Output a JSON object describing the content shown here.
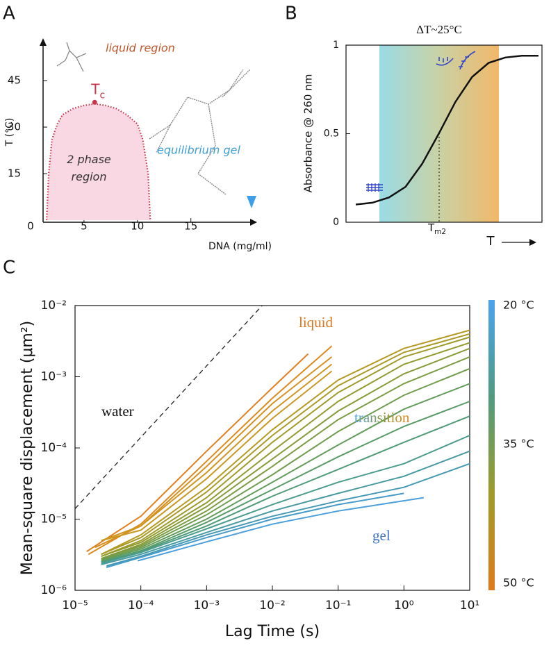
{
  "chart_data": [
    {
      "type": "line",
      "panel": "A",
      "xlabel": "DNA (mg/ml)",
      "ylabel": "T (°C)",
      "xlim": [
        0,
        21
      ],
      "ylim": [
        0,
        58
      ],
      "xticks": [
        0,
        5,
        10,
        15
      ],
      "yticks": [
        15,
        30,
        45
      ],
      "series": [
        {
          "color": "#c8344a",
          "fill": "#f9d7e3",
          "x": [
            1.5,
            1.7,
            2,
            2.5,
            3,
            4,
            5,
            6,
            7,
            8,
            9,
            10,
            10.5,
            11,
            11.2
          ],
          "values": [
            0,
            15,
            26,
            31,
            34,
            36,
            37,
            37.5,
            37,
            36,
            34,
            31,
            26,
            15,
            0
          ]
        }
      ],
      "critical_point": {
        "x": 6,
        "y": 38,
        "color": "#c8344a",
        "label": "T",
        "label_sub": "c"
      },
      "annotations": [
        {
          "text": "liquid region",
          "color": "#c0572a"
        },
        {
          "text": "2 phase region",
          "color": "#333333"
        },
        {
          "text": "equilibrium gel",
          "color": "#3f9fd6"
        }
      ]
    },
    {
      "type": "line",
      "panel": "B",
      "xlabel": "T",
      "ylabel": "Absorbance @ 260 nm",
      "ylim": [
        0,
        1
      ],
      "yticks": [
        0,
        0.5,
        1
      ],
      "series": [
        {
          "color": "#111111",
          "values": [
            0.1,
            0.11,
            0.14,
            0.2,
            0.33,
            0.5,
            0.68,
            0.82,
            0.9,
            0.93,
            0.94,
            0.94
          ]
        }
      ],
      "band_label": "ΔT~25°C",
      "melt_label": "T",
      "melt_label_sub": "m2"
    },
    {
      "type": "line",
      "panel": "C",
      "log_x": true,
      "log_y": true,
      "xlabel": "Lag Time (s)",
      "ylabel": "Mean-square displacement (μm²)",
      "xlim": [
        1e-05,
        10
      ],
      "ylim": [
        1e-06,
        0.01
      ],
      "xticks": [
        {
          "value": 1e-05,
          "label": "10⁻⁵"
        },
        {
          "value": 0.0001,
          "label": "10⁻⁴"
        },
        {
          "value": 0.001,
          "label": "10⁻³"
        },
        {
          "value": 0.01,
          "label": "10⁻²"
        },
        {
          "value": 0.1,
          "label": "10⁻¹"
        },
        {
          "value": 1,
          "label": "10⁰"
        },
        {
          "value": 10,
          "label": "10¹"
        }
      ],
      "yticks": [
        {
          "value": 1e-06,
          "label": "10⁻⁶"
        },
        {
          "value": 1e-05,
          "label": "10⁻⁵"
        },
        {
          "value": 0.0001,
          "label": "10⁻⁴"
        },
        {
          "value": 0.001,
          "label": "10⁻³"
        },
        {
          "value": 0.01,
          "label": "10⁻²"
        }
      ],
      "reference": {
        "color": "#222222",
        "x": [
          1e-05,
          0.007
        ],
        "values": [
          1.4e-05,
          0.01
        ]
      },
      "series": [
        {
          "color": "#e0801e",
          "x": [
            1.5e-05,
            0.0001,
            0.001,
            0.01,
            0.035
          ],
          "values": [
            3.5e-06,
            1.1e-05,
            9e-05,
            0.0007,
            0.0021
          ]
        },
        {
          "color": "#dc8a1e",
          "x": [
            1.6e-05,
            0.0001,
            0.001,
            0.01,
            0.08
          ],
          "values": [
            3.2e-06,
            8.5e-06,
            6.5e-05,
            0.0005,
            0.0027
          ]
        },
        {
          "color": "#d6901f",
          "x": [
            2e-05,
            0.0001,
            0.001,
            0.01,
            0.08
          ],
          "values": [
            4e-06,
            8e-06,
            5.5e-05,
            0.00042,
            0.0019
          ]
        },
        {
          "color": "#cf951f",
          "x": [
            2.5e-05,
            0.0001,
            0.001,
            0.01,
            0.08
          ],
          "values": [
            5e-06,
            8e-06,
            4.5e-05,
            0.00033,
            0.0015
          ]
        },
        {
          "color": "#c99820",
          "x": [
            2.5e-05,
            0.0001,
            0.001,
            0.01,
            0.08
          ],
          "values": [
            5e-06,
            7e-06,
            3.7e-05,
            0.00026,
            0.0012
          ]
        },
        {
          "color": "#b59a22",
          "x": [
            2.5e-05,
            0.0001,
            0.001,
            0.01,
            0.1,
            1,
            10
          ],
          "values": [
            3.2e-06,
            6e-06,
            2.8e-05,
            0.00018,
            0.0009,
            0.0025,
            0.0045
          ]
        },
        {
          "color": "#aa9a25",
          "x": [
            2.5e-05,
            0.0001,
            0.001,
            0.01,
            0.1,
            1,
            10
          ],
          "values": [
            3.2e-06,
            5.5e-06,
            2.4e-05,
            0.00015,
            0.00075,
            0.0022,
            0.004
          ]
        },
        {
          "color": "#9e9b2a",
          "x": [
            2.5e-05,
            0.0001,
            0.001,
            0.01,
            0.1,
            1,
            10
          ],
          "values": [
            3e-06,
            5e-06,
            2e-05,
            0.00012,
            0.0006,
            0.0019,
            0.0036
          ]
        },
        {
          "color": "#939b30",
          "x": [
            2.5e-05,
            0.0001,
            0.001,
            0.01,
            0.1,
            1,
            10
          ],
          "values": [
            3e-06,
            4.7e-06,
            1.7e-05,
            9e-05,
            0.00045,
            0.0015,
            0.003
          ]
        },
        {
          "color": "#879b38",
          "x": [
            2.5e-05,
            0.0001,
            0.001,
            0.01,
            0.1,
            1,
            10
          ],
          "values": [
            2.8e-06,
            4.4e-06,
            1.5e-05,
            7e-05,
            0.00033,
            0.0011,
            0.0025
          ]
        },
        {
          "color": "#7c9c42",
          "x": [
            2.5e-05,
            0.0001,
            0.001,
            0.01,
            0.1,
            1,
            10
          ],
          "values": [
            2.8e-06,
            4.2e-06,
            1.3e-05,
            5.5e-05,
            0.00025,
            0.0008,
            0.0019
          ]
        },
        {
          "color": "#6f9c4d",
          "x": [
            2.5e-05,
            0.0001,
            0.001,
            0.01,
            0.1,
            1,
            10
          ],
          "values": [
            2.7e-06,
            4e-06,
            1.15e-05,
            4.2e-05,
            0.00017,
            0.00055,
            0.0013
          ]
        },
        {
          "color": "#639c5a",
          "x": [
            2.5e-05,
            0.0001,
            0.001,
            0.01,
            0.1,
            1,
            10
          ],
          "values": [
            2.6e-06,
            3.8e-06,
            1e-05,
            3.3e-05,
            0.00011,
            0.00035,
            0.0008
          ]
        },
        {
          "color": "#589c68",
          "x": [
            2.5e-05,
            0.0001,
            0.001,
            0.01,
            0.1,
            1,
            10
          ],
          "values": [
            2.5e-06,
            3.6e-06,
            9e-06,
            2.6e-05,
            7.5e-05,
            0.0002,
            0.00045
          ]
        },
        {
          "color": "#4f9b78",
          "x": [
            2.5e-05,
            0.0001,
            0.001,
            0.01,
            0.1,
            1,
            10
          ],
          "values": [
            2.5e-06,
            3.5e-06,
            8e-06,
            2.1e-05,
            5e-05,
            0.00012,
            0.00028
          ]
        },
        {
          "color": "#4a9c8c",
          "x": [
            2.5e-05,
            0.0001,
            0.001,
            0.01,
            0.1,
            1,
            10
          ],
          "values": [
            2.4e-06,
            3.4e-06,
            7.3e-06,
            1.6e-05,
            3.3e-05,
            6e-05,
            0.00015
          ]
        },
        {
          "color": "#479aa0",
          "x": [
            2.5e-05,
            0.0001,
            0.001,
            0.01,
            0.1,
            1,
            10
          ],
          "values": [
            2.3e-06,
            3.2e-06,
            6.5e-06,
            1.3e-05,
            2.3e-05,
            4e-05,
            9e-05
          ]
        },
        {
          "color": "#4599b4",
          "x": [
            3e-05,
            0.0001,
            0.001,
            0.01,
            0.1,
            1,
            10
          ],
          "values": [
            2.2e-06,
            3e-06,
            6e-06,
            1.1e-05,
            1.8e-05,
            2.8e-05,
            6e-05
          ]
        },
        {
          "color": "#469bc8",
          "x": [
            3e-05,
            0.0001,
            0.001,
            0.01,
            0.1,
            1
          ],
          "values": [
            2.1e-06,
            2.9e-06,
            5.5e-06,
            1e-05,
            1.6e-05,
            2.3e-05
          ]
        },
        {
          "color": "#4a9fdc",
          "x": [
            9e-05,
            0.001,
            0.01,
            0.1,
            2
          ],
          "values": [
            2.6e-06,
            4.8e-06,
            8.5e-06,
            1.3e-05,
            2e-05
          ]
        }
      ],
      "annotations": [
        {
          "text": "liquid",
          "color": "#d9761e"
        },
        {
          "text": "water",
          "color": "#111111"
        },
        {
          "text": "transition",
          "color": "#8a9a3a"
        },
        {
          "text": "gel",
          "color": "#3d72c8"
        }
      ],
      "colorbar": {
        "colors": [
          "#4aa3ef",
          "#4f9b80",
          "#9e9b2a",
          "#e07b1a"
        ],
        "labels": [
          "20 °C",
          "35 °C",
          "50 °C"
        ]
      }
    }
  ],
  "panel_labels": [
    "A",
    "B",
    "C"
  ]
}
